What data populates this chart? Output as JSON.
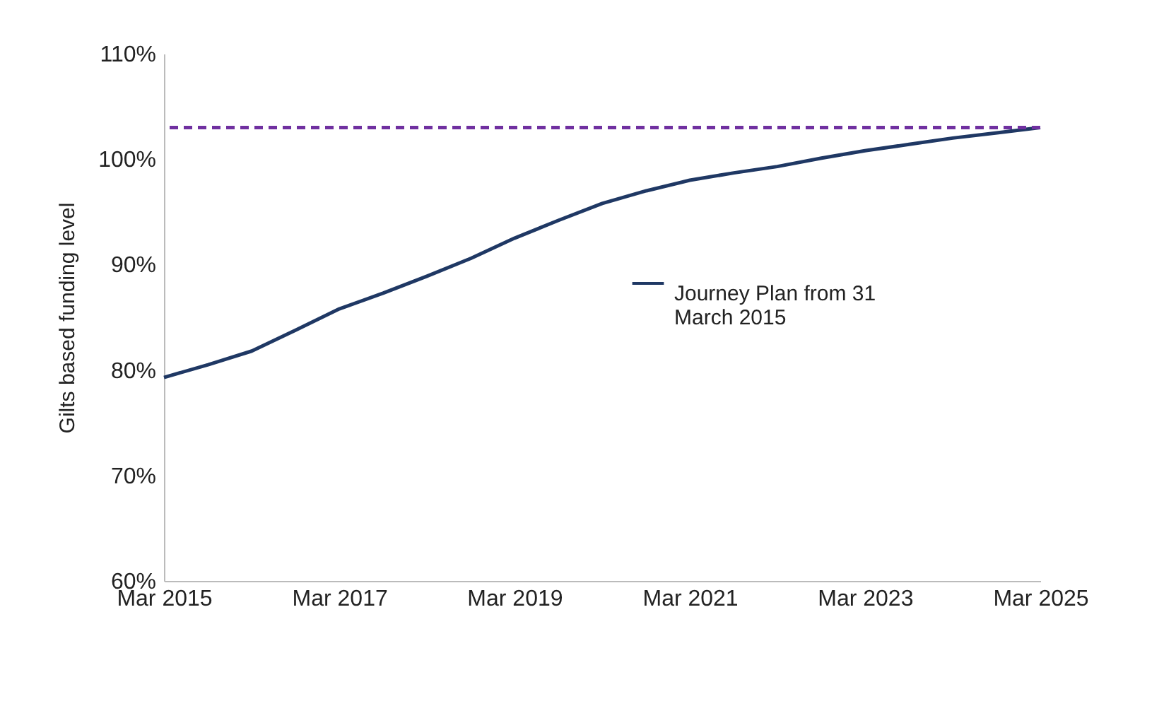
{
  "chart_data": {
    "type": "line",
    "ylabel": "Gilts based funding level",
    "x": [
      "2015-03",
      "2015-09",
      "2016-03",
      "2016-09",
      "2017-03",
      "2017-09",
      "2018-03",
      "2018-09",
      "2019-03",
      "2019-09",
      "2020-03",
      "2020-09",
      "2021-03",
      "2021-09",
      "2022-03",
      "2022-09",
      "2023-03",
      "2023-09",
      "2024-03",
      "2024-09",
      "2025-03"
    ],
    "series": [
      {
        "name": "Journey Plan from 31 March 2015",
        "color": "#1f3864",
        "values": [
          79.3,
          80.5,
          81.8,
          83.8,
          85.8,
          87.3,
          88.9,
          90.6,
          92.5,
          94.2,
          95.8,
          97.0,
          98.0,
          98.7,
          99.3,
          100.1,
          100.8,
          101.4,
          102.0,
          102.5,
          103.0
        ]
      }
    ],
    "xlim": [
      "2015-03",
      "2025-03"
    ],
    "xticks": [
      {
        "value": "2015-03",
        "label": "Mar 2015"
      },
      {
        "value": "2017-03",
        "label": "Mar 2017"
      },
      {
        "value": "2019-03",
        "label": "Mar 2019"
      },
      {
        "value": "2021-03",
        "label": "Mar 2021"
      },
      {
        "value": "2023-03",
        "label": "Mar 2023"
      },
      {
        "value": "2025-03",
        "label": "Mar 2025"
      }
    ],
    "ylim": [
      60,
      110
    ],
    "yticks": [
      {
        "value": 60,
        "label": "60%"
      },
      {
        "value": 70,
        "label": "70%"
      },
      {
        "value": 80,
        "label": "80%"
      },
      {
        "value": 90,
        "label": "90%"
      },
      {
        "value": 100,
        "label": "100%"
      },
      {
        "value": 110,
        "label": "110%"
      }
    ],
    "ref_lines": [
      {
        "axis": "y",
        "value": 103.0,
        "color": "#7030a0",
        "line_style": "dashed"
      }
    ],
    "grid": false,
    "legend": "right",
    "line_style": "solid",
    "marker": "none"
  }
}
